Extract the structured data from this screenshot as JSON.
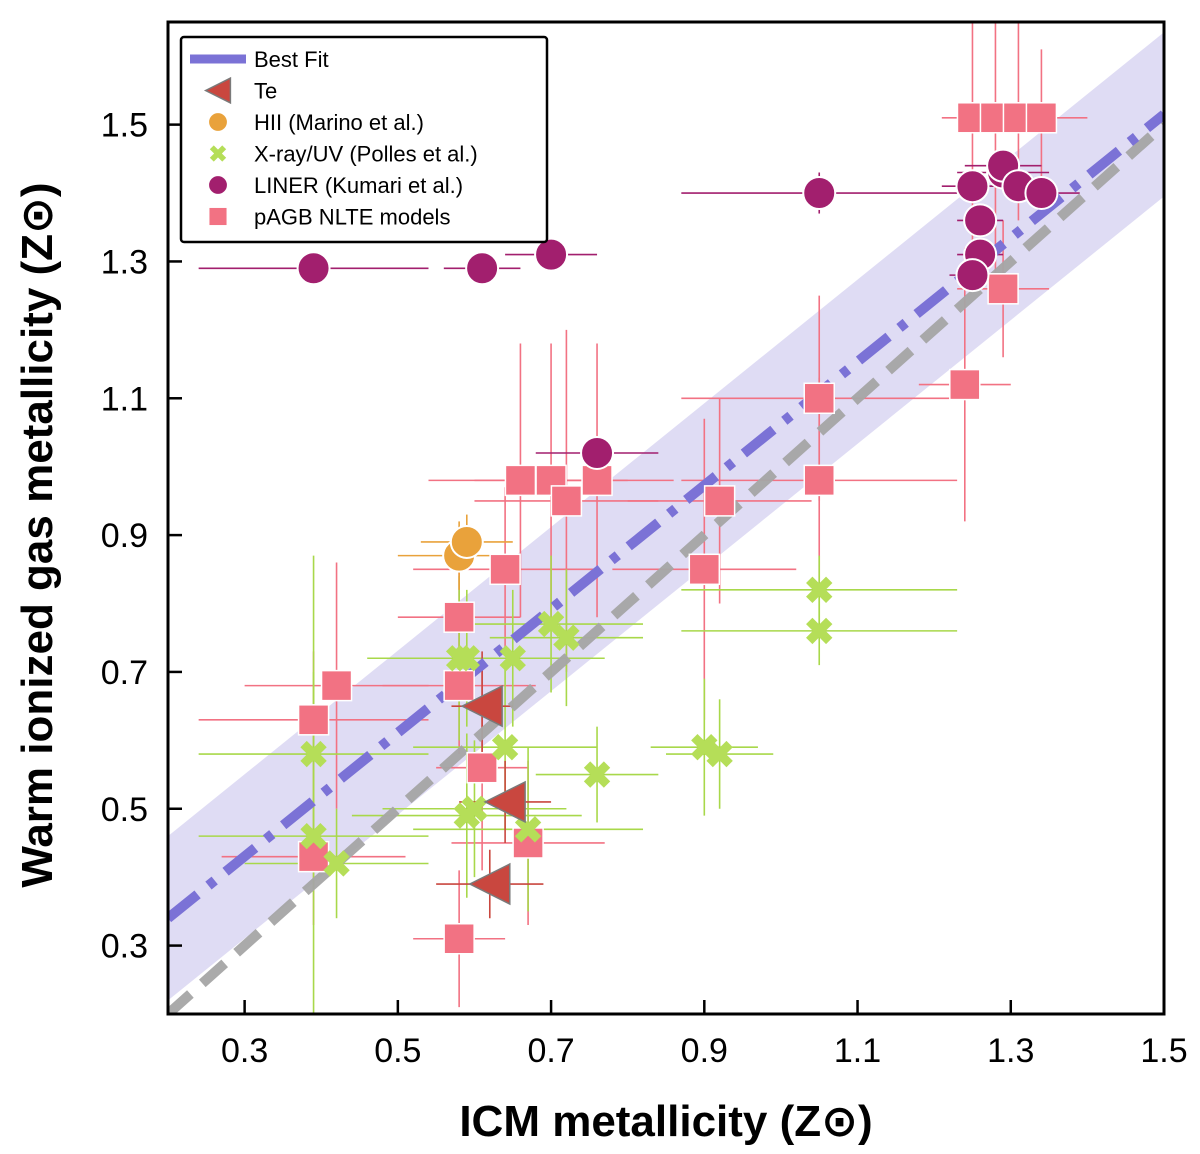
{
  "chart_data": {
    "type": "scatter",
    "xlabel": "ICM metallicity (Z⊙)",
    "ylabel": "Warm ionized gas metallicity (Z⊙)",
    "xlim": [
      0.2,
      1.5
    ],
    "ylim": [
      0.2,
      1.65
    ],
    "xticks": [
      "0.3",
      "0.5",
      "0.7",
      "0.9",
      "1.1",
      "1.3",
      "1.5"
    ],
    "yticks": [
      "0.3",
      "0.5",
      "0.7",
      "0.9",
      "1.1",
      "1.3",
      "1.5"
    ],
    "legend": {
      "placement": "top-left",
      "entries": [
        "Best Fit",
        "Te",
        "HII (Marino et al.)",
        "X-ray/UV (Polles et al.)",
        "LINER (Kumari et al.)",
        "pAGB NLTE models"
      ]
    },
    "best_fit": {
      "name": "Best Fit",
      "style": "dash-dot",
      "color": "#7b72d6",
      "band_color": "#d9d6f2",
      "x": [
        0.2,
        1.5
      ],
      "y": [
        0.34,
        1.515
      ],
      "band_halfwidth": 0.12
    },
    "one_to_one": {
      "style": "dashed",
      "color": "#a6a6a6",
      "x": [
        0.2,
        1.5
      ],
      "y": [
        0.2,
        1.5
      ]
    },
    "series": [
      {
        "name": "pAGB NLTE models",
        "marker": "square",
        "color": "#f27283",
        "errcolor": "#f27283",
        "points": [
          {
            "x": 0.58,
            "y": 0.31,
            "xerr": 0.06,
            "yerr": 0.1
          },
          {
            "x": 0.39,
            "y": 0.43,
            "xerr": 0.12,
            "yerr": 0.1
          },
          {
            "x": 0.39,
            "y": 0.63,
            "xerr": 0.15,
            "yerr": 0.1
          },
          {
            "x": 0.42,
            "y": 0.68,
            "xerr": 0.12,
            "yerr": 0.18
          },
          {
            "x": 0.58,
            "y": 0.68,
            "xerr": 0.1,
            "yerr": 0.1
          },
          {
            "x": 0.58,
            "y": 0.78,
            "xerr": 0.08,
            "yerr": 0.1
          },
          {
            "x": 0.61,
            "y": 0.56,
            "xerr": 0.06,
            "yerr": 0.15
          },
          {
            "x": 0.64,
            "y": 0.85,
            "xerr": 0.12,
            "yerr": 0.12
          },
          {
            "x": 0.67,
            "y": 0.45,
            "xerr": 0.1,
            "yerr": 0.12
          },
          {
            "x": 0.66,
            "y": 0.98,
            "xerr": 0.12,
            "yerr": 0.2
          },
          {
            "x": 0.7,
            "y": 0.98,
            "xerr": 0.1,
            "yerr": 0.2
          },
          {
            "x": 0.72,
            "y": 0.95,
            "xerr": 0.12,
            "yerr": 0.25
          },
          {
            "x": 0.76,
            "y": 0.98,
            "xerr": 0.1,
            "yerr": 0.2
          },
          {
            "x": 0.9,
            "y": 0.85,
            "xerr": 0.12,
            "yerr": 0.22
          },
          {
            "x": 0.92,
            "y": 0.95,
            "xerr": 0.12,
            "yerr": 0.15
          },
          {
            "x": 1.05,
            "y": 1.1,
            "xerr": 0.18,
            "yerr": 0.15
          },
          {
            "x": 1.05,
            "y": 0.98,
            "xerr": 0.18,
            "yerr": 0.15
          },
          {
            "x": 1.24,
            "y": 1.12,
            "xerr": 0.06,
            "yerr": 0.2
          },
          {
            "x": 1.29,
            "y": 1.26,
            "xerr": 0.06,
            "yerr": 0.1
          },
          {
            "x": 1.25,
            "y": 1.51,
            "xerr": 0.04,
            "yerr": 0.23
          },
          {
            "x": 1.28,
            "y": 1.51,
            "xerr": 0.04,
            "yerr": 0.23
          },
          {
            "x": 1.31,
            "y": 1.51,
            "xerr": 0.05,
            "yerr": 0.15
          },
          {
            "x": 1.34,
            "y": 1.51,
            "xerr": 0.06,
            "yerr": 0.1
          }
        ]
      },
      {
        "name": "X-ray/UV (Polles et al.)",
        "marker": "x",
        "color": "#b5de58",
        "errcolor": "#a8d84a",
        "points": [
          {
            "x": 0.39,
            "y": 0.58,
            "xerr": 0.15,
            "yerr": 0.12
          },
          {
            "x": 0.39,
            "y": 0.46,
            "xerr": 0.15,
            "yerr": 0.41
          },
          {
            "x": 0.42,
            "y": 0.42,
            "xerr": 0.12,
            "yerr": 0.08
          },
          {
            "x": 0.58,
            "y": 0.72,
            "xerr": 0.12,
            "yerr": 0.12
          },
          {
            "x": 0.59,
            "y": 0.72,
            "xerr": 0.1,
            "yerr": 0.1
          },
          {
            "x": 0.59,
            "y": 0.49,
            "xerr": 0.15,
            "yerr": 0.12
          },
          {
            "x": 0.6,
            "y": 0.5,
            "xerr": 0.12,
            "yerr": 0.1
          },
          {
            "x": 0.64,
            "y": 0.59,
            "xerr": 0.12,
            "yerr": 0.12
          },
          {
            "x": 0.65,
            "y": 0.72,
            "xerr": 0.12,
            "yerr": 0.1
          },
          {
            "x": 0.67,
            "y": 0.47,
            "xerr": 0.15,
            "yerr": 0.12
          },
          {
            "x": 0.7,
            "y": 0.77,
            "xerr": 0.12,
            "yerr": 0.1
          },
          {
            "x": 0.72,
            "y": 0.75,
            "xerr": 0.1,
            "yerr": 0.1
          },
          {
            "x": 0.76,
            "y": 0.55,
            "xerr": 0.08,
            "yerr": 0.07
          },
          {
            "x": 0.9,
            "y": 0.59,
            "xerr": 0.07,
            "yerr": 0.1
          },
          {
            "x": 0.92,
            "y": 0.58,
            "xerr": 0.07,
            "yerr": 0.08
          },
          {
            "x": 1.05,
            "y": 0.82,
            "xerr": 0.18,
            "yerr": 0.05
          },
          {
            "x": 1.05,
            "y": 0.76,
            "xerr": 0.18,
            "yerr": 0.05
          }
        ]
      },
      {
        "name": "HII (Marino et al.)",
        "marker": "circle",
        "color": "#e9a23b",
        "errcolor": "#e9a23b",
        "points": [
          {
            "x": 0.58,
            "y": 0.87,
            "xerr": 0.08,
            "yerr": 0.05
          },
          {
            "x": 0.59,
            "y": 0.89,
            "xerr": 0.06,
            "yerr": 0.04
          }
        ]
      },
      {
        "name": "Te",
        "marker": "triangle-left",
        "color": "#c9473f",
        "errcolor": "#c9473f",
        "points": [
          {
            "x": 0.61,
            "y": 0.65,
            "xerr": 0.04,
            "yerr": 0.08
          },
          {
            "x": 0.64,
            "y": 0.51,
            "xerr": 0.06,
            "yerr": 0.06
          },
          {
            "x": 0.62,
            "y": 0.39,
            "xerr": 0.07,
            "yerr": 0.05
          }
        ]
      },
      {
        "name": "LINER (Kumari et al.)",
        "marker": "circle",
        "color": "#a21f6e",
        "errcolor": "#a21f6e",
        "points": [
          {
            "x": 0.39,
            "y": 1.29,
            "xerr": 0.15,
            "yerr": 0
          },
          {
            "x": 0.61,
            "y": 1.29,
            "xerr": 0.05,
            "yerr": 0
          },
          {
            "x": 0.7,
            "y": 1.31,
            "xerr": 0.06,
            "yerr": 0
          },
          {
            "x": 0.76,
            "y": 1.02,
            "xerr": 0.08,
            "yerr": 0
          },
          {
            "x": 1.05,
            "y": 1.4,
            "xerr": 0.18,
            "yerr": 0.03
          },
          {
            "x": 1.25,
            "y": 1.41,
            "xerr": 0.04,
            "yerr": 0
          },
          {
            "x": 1.26,
            "y": 1.36,
            "xerr": 0.03,
            "yerr": 0
          },
          {
            "x": 1.26,
            "y": 1.31,
            "xerr": 0.03,
            "yerr": 0
          },
          {
            "x": 1.25,
            "y": 1.28,
            "xerr": 0.03,
            "yerr": 0
          },
          {
            "x": 1.29,
            "y": 1.43,
            "xerr": 0.06,
            "yerr": 0.02
          },
          {
            "x": 1.29,
            "y": 1.44,
            "xerr": 0.05,
            "yerr": 0.02
          },
          {
            "x": 1.31,
            "y": 1.41,
            "xerr": 0.04,
            "yerr": 0
          },
          {
            "x": 1.34,
            "y": 1.4,
            "xerr": 0.05,
            "yerr": 0
          }
        ]
      }
    ]
  }
}
